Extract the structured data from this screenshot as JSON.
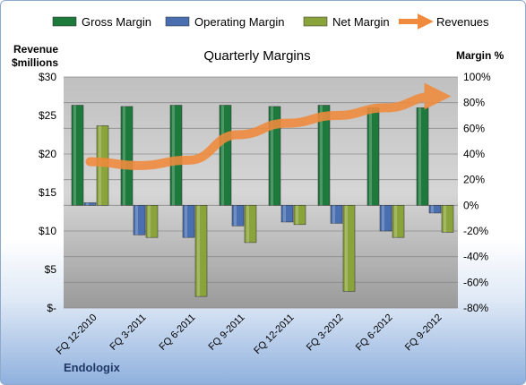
{
  "chart_data": {
    "type": "bar",
    "title": "Quarterly Margins",
    "categories": [
      "FQ 12-2010",
      "FQ 3-2011",
      "FQ 6-2011",
      "FQ 9-2011",
      "FQ 12-2011",
      "FQ 3-2012",
      "FQ 6-2012",
      "FQ 9-2012"
    ],
    "series": [
      {
        "name": "Gross Margin",
        "axis": "right",
        "type": "bar",
        "color": "#1e7a3c",
        "values": [
          78,
          77,
          78,
          78,
          77,
          78,
          76,
          76
        ]
      },
      {
        "name": "Operating Margin",
        "axis": "right",
        "type": "bar",
        "color": "#4a6fb0",
        "values": [
          2,
          -23,
          -25,
          -16,
          -13,
          -14,
          -20,
          -6
        ]
      },
      {
        "name": "Net Margin",
        "axis": "right",
        "type": "bar",
        "color": "#8aa33a",
        "values": [
          62,
          -25,
          -71,
          -29,
          -15,
          -67,
          -25,
          -21
        ]
      },
      {
        "name": "Revenues",
        "axis": "left",
        "type": "line",
        "color": "#f08a3c",
        "values": [
          19,
          18.5,
          19.2,
          22.5,
          24,
          25,
          26,
          27.5
        ]
      }
    ],
    "y_left": {
      "label": [
        "Revenue",
        "$millions"
      ],
      "ylim": [
        0,
        30
      ],
      "ticks": [
        "$-",
        "$5",
        "$10",
        "$15",
        "$20",
        "$25",
        "$30"
      ]
    },
    "y_right": {
      "label": "Margin %",
      "ylim": [
        -80,
        100
      ],
      "ticks": [
        "-80%",
        "-60%",
        "-40%",
        "-20%",
        "0%",
        "20%",
        "40%",
        "60%",
        "80%",
        "100%"
      ]
    },
    "legend_position": "top",
    "grid": true
  },
  "footer_label": "Endologix"
}
